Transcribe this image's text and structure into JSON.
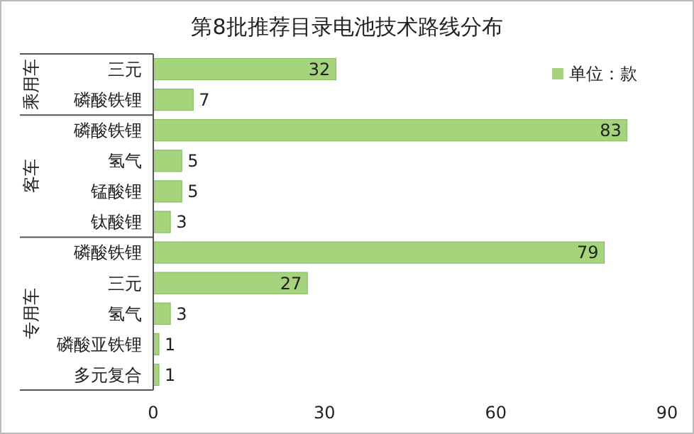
{
  "chart_data": {
    "type": "bar",
    "orientation": "horizontal",
    "title": "第8批推荐目录电池技术路线分布",
    "categories": [
      "三元",
      "磷酸铁锂",
      "磷酸铁锂",
      "氢气",
      "锰酸锂",
      "钛酸锂",
      "磷酸铁锂",
      "三元",
      "氢气",
      "磷酸亚铁锂",
      "多元复合"
    ],
    "series": [
      {
        "name": "单位：款",
        "color": "#a6d47c",
        "values": [
          32,
          7,
          83,
          5,
          5,
          3,
          79,
          27,
          3,
          1,
          1
        ]
      }
    ],
    "xlim": [
      0,
      90
    ],
    "xticks": [
      0,
      30,
      60,
      90
    ],
    "data_labels": true,
    "legend": "top right",
    "grid": false,
    "annotations": [
      "乘用车",
      "客车",
      "专用车"
    ]
  }
}
